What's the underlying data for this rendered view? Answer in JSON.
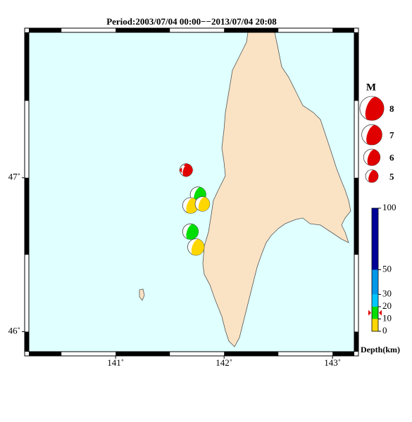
{
  "chart_data": {
    "type": "focal-map",
    "title": "Period:2003/07/04 00:00−−2013/07/04 20:08",
    "xlim": [
      140.2,
      143.2
    ],
    "ylim": [
      45.87,
      47.945
    ],
    "xticks": [
      {
        "value": 141,
        "label": "141˚"
      },
      {
        "value": 142,
        "label": "142˚"
      },
      {
        "value": 143,
        "label": "143˚"
      }
    ],
    "yticks": [
      {
        "value": 46,
        "label": "46˚"
      },
      {
        "value": 47,
        "label": "47˚"
      }
    ],
    "events": [
      {
        "lon": 141.65,
        "lat": 47.05,
        "mag": 5.0,
        "depth": 15,
        "latest": true
      },
      {
        "lon": 141.76,
        "lat": 46.89,
        "mag": 5.8,
        "depth": 14
      },
      {
        "lon": 141.69,
        "lat": 46.82,
        "mag": 5.8,
        "depth": 7
      },
      {
        "lon": 141.8,
        "lat": 46.83,
        "mag": 5.5,
        "depth": 7
      },
      {
        "lon": 141.69,
        "lat": 46.65,
        "mag": 5.8,
        "depth": 14
      },
      {
        "lon": 141.74,
        "lat": 46.55,
        "mag": 6.0,
        "depth": 7
      }
    ],
    "mag_legend": {
      "title": "M",
      "values": [
        8,
        7,
        6,
        5
      ]
    },
    "depth_scale": {
      "title": "Depth(km)",
      "lim": [
        0,
        100
      ],
      "ticks": [
        0,
        10,
        20,
        30,
        50,
        100
      ],
      "bins": [
        0,
        10,
        20,
        30,
        50,
        100
      ],
      "colors": [
        "#ffd700",
        "#00dd00",
        "#00c8ff",
        "#0098e8",
        "#000099"
      ]
    },
    "latest_color": "#e00000"
  }
}
